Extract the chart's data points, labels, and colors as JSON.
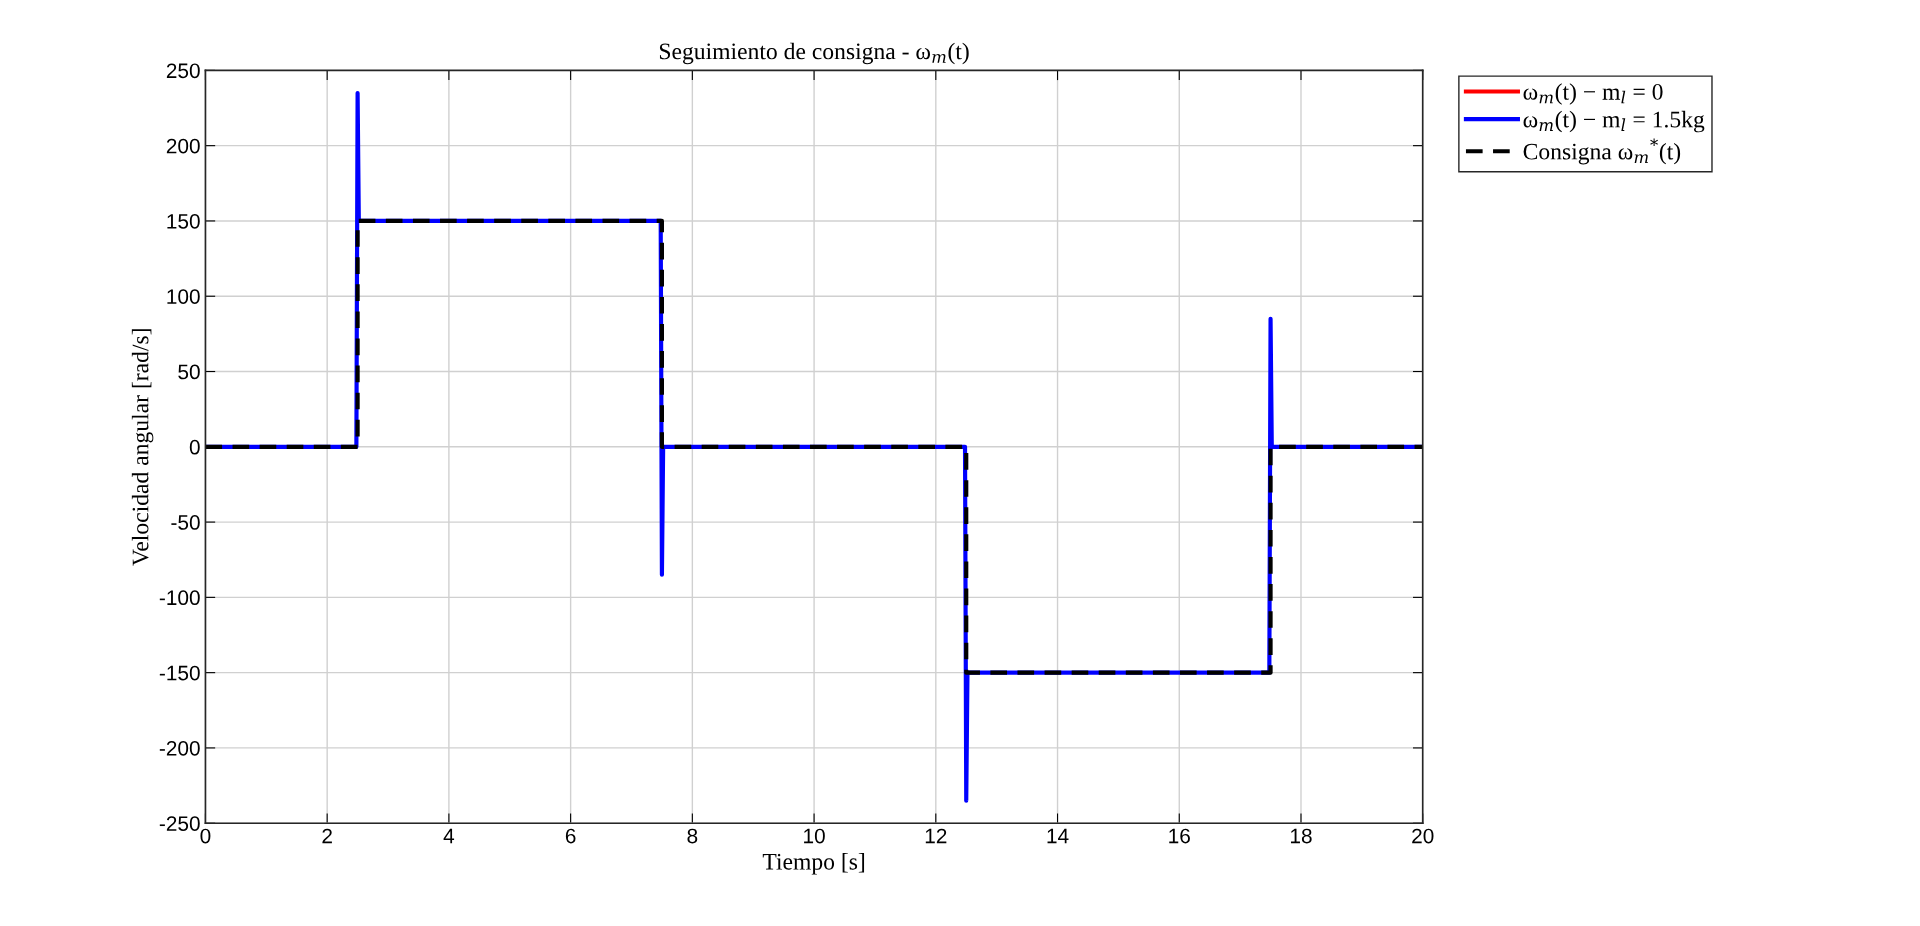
{
  "chart_data": {
    "type": "line",
    "title": "Seguimiento de consigna - ω$_{m}$(t)",
    "xlabel": "Tiempo [s]",
    "ylabel": "Velocidad angular [rad/s]",
    "xlim": [
      0,
      20
    ],
    "xticks": [
      0,
      2,
      4,
      6,
      8,
      10,
      12,
      14,
      16,
      18,
      20
    ],
    "ylim": [
      -250,
      250
    ],
    "yticks": [
      -250,
      -200,
      -150,
      -100,
      -50,
      0,
      50,
      100,
      150,
      200,
      250
    ],
    "grid": true,
    "legend": "top right",
    "series": [
      {
        "name": "ω$_{m}$(t) − m$_{l}$ = 0",
        "color": "#ff0000",
        "line_style": "solid"
      },
      {
        "name": "ω$_{m}$(t) − m$_{l}$ = 1.5kg",
        "color": "#0000ff",
        "line_style": "solid",
        "x": [
          0,
          2.48,
          2.5,
          2.52,
          7.48,
          7.5,
          7.52,
          12.48,
          12.5,
          12.52,
          17.48,
          17.5,
          17.52,
          20
        ],
        "values": [
          0,
          0,
          235,
          150,
          150,
          -85,
          0,
          0,
          -235,
          -150,
          -150,
          85,
          0,
          0
        ]
      },
      {
        "name": "Consigna ω$_{m}$$^{*}$(t)",
        "color": "#000000",
        "line_style": "dashed",
        "x": [
          0,
          2.5,
          2.5,
          7.5,
          7.5,
          12.5,
          12.5,
          17.5,
          17.5,
          20
        ],
        "values": [
          0,
          0,
          150,
          150,
          0,
          0,
          -150,
          -150,
          0,
          0
        ]
      }
    ]
  }
}
